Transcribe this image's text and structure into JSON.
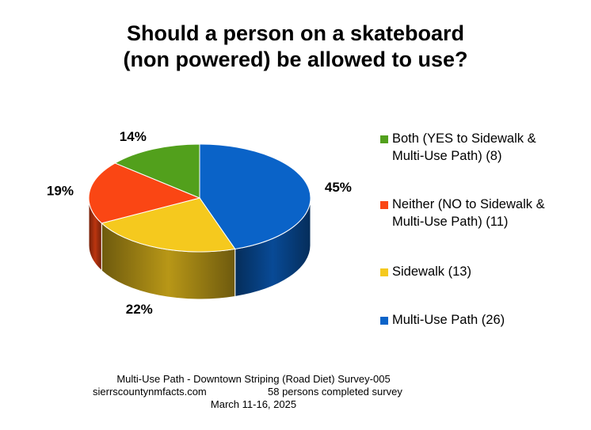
{
  "title": [
    "Should a person on a skateboard",
    "(non powered) be allowed to use?"
  ],
  "chart_data": {
    "type": "pie",
    "style": "3d",
    "slices": [
      {
        "label": "Multi-Use Path (26)",
        "value": 26,
        "percent": "45%",
        "color": "#0a63c8"
      },
      {
        "label": "Sidewalk (13)",
        "value": 13,
        "percent": "22%",
        "color": "#f5c91e"
      },
      {
        "label": "Neither (NO to Sidewalk & Multi-Use Path) (11)",
        "value": 11,
        "percent": "19%",
        "color": "#fa4614"
      },
      {
        "label": "Both (YES to Sidewalk & Multi-Use Path) (8)",
        "value": 8,
        "percent": "14%",
        "color": "#52a01c"
      }
    ],
    "legend": {
      "position": "right",
      "items": [
        {
          "text": [
            "Both (YES to Sidewalk &",
            "Multi-Use Path) (8)"
          ],
          "color": "#52a01c"
        },
        {
          "text": [
            "Neither (NO to Sidewalk &",
            "Multi-Use Path) (11)"
          ],
          "color": "#fa4614"
        },
        {
          "text": [
            "Sidewalk (13)"
          ],
          "color": "#f5c91e"
        },
        {
          "text": [
            "Multi-Use Path (26)"
          ],
          "color": "#0a63c8"
        }
      ]
    }
  },
  "footer": {
    "line1": "Multi-Use Path - Downtown Striping (Road Diet) Survey-005",
    "website": "sierrscountynmfacts.com",
    "completed": "58 persons completed survey",
    "dates": "March 11-16, 2025"
  }
}
